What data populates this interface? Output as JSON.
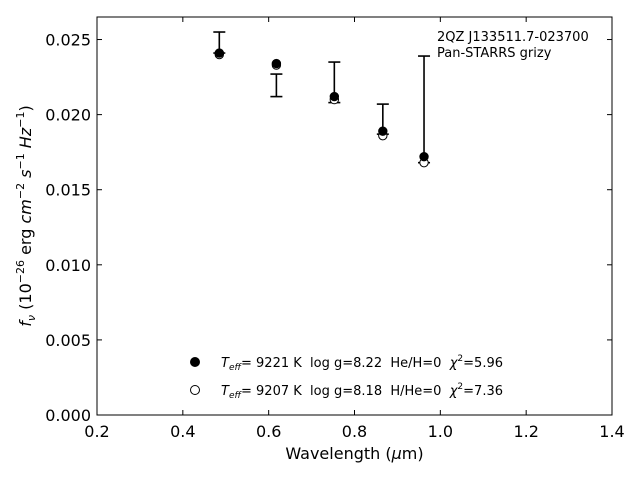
{
  "chart_data": {
    "type": "scatter",
    "annotation_lines": [
      "2QZ J133511.7-023700",
      "Pan-STARRS grizy"
    ],
    "xlabel_prefix": "Wavelength (",
    "xlabel_unit": "μ",
    "xlabel_suffix": "m)",
    "ylabel": {
      "symbol": "f",
      "symbol_sub": "ν",
      "text1": " (10",
      "exp1": "−26",
      "text2": " erg ",
      "cm": "cm",
      "exp2": "−2",
      "s": " s",
      "exp3": "−1",
      "hz": " Hz",
      "exp4": "−1",
      "close": ")"
    },
    "xlim": [
      0.2,
      1.4
    ],
    "ylim": [
      0.0,
      0.0265
    ],
    "x_ticks": [
      0.2,
      0.4,
      0.6,
      0.8,
      1.0,
      1.2,
      1.4
    ],
    "x_tick_labels": [
      "0.2",
      "0.4",
      "0.6",
      "0.8",
      "1.0",
      "1.2",
      "1.4"
    ],
    "y_ticks": [
      0.0,
      0.005,
      0.01,
      0.015,
      0.02,
      0.025
    ],
    "y_tick_labels": [
      "0.000",
      "0.005",
      "0.010",
      "0.015",
      "0.020",
      "0.025"
    ],
    "observed": [
      {
        "x": 0.485,
        "y_low": 0.0241,
        "y_high": 0.0255
      },
      {
        "x": 0.618,
        "y_low": 0.0212,
        "y_high": 0.0227
      },
      {
        "x": 0.753,
        "y_low": 0.0208,
        "y_high": 0.0235
      },
      {
        "x": 0.866,
        "y_low": 0.0187,
        "y_high": 0.0207
      },
      {
        "x": 0.962,
        "y_low": 0.0168,
        "y_high": 0.0239
      }
    ],
    "series": [
      {
        "marker": "filled",
        "x": [
          0.485,
          0.618,
          0.753,
          0.866,
          0.962
        ],
        "y": [
          0.0241,
          0.0234,
          0.0212,
          0.0189,
          0.0172
        ],
        "legend": {
          "teff_label": "T",
          "teff_sub": "eff",
          "teff_value": "=  9221 K",
          "logg": "  log g=8.22  He/H=0  ",
          "chi": "χ",
          "chi_exp": "2",
          "chi_value": "=5.96"
        }
      },
      {
        "marker": "open",
        "x": [
          0.485,
          0.618,
          0.753,
          0.866,
          0.962
        ],
        "y": [
          0.024,
          0.0233,
          0.021,
          0.0186,
          0.0168
        ],
        "legend": {
          "teff_label": "T",
          "teff_sub": "eff",
          "teff_value": "=  9207 K",
          "logg": "  log g=8.18  H/He=0  ",
          "chi": "χ",
          "chi_exp": "2",
          "chi_value": "=7.36"
        }
      }
    ],
    "legend_location": "lower-center",
    "grid": false
  }
}
